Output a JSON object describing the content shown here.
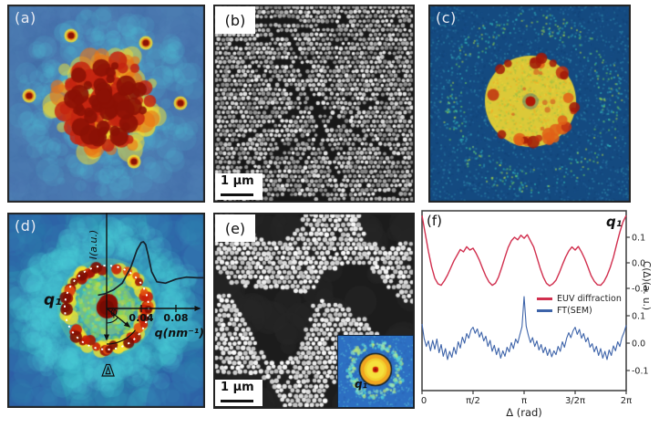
{
  "panels": {
    "a": {
      "label": "(a)"
    },
    "b": {
      "label": "(b)",
      "scale_bar": "1 μm"
    },
    "c": {
      "label": "(c)"
    },
    "d": {
      "label": "(d)",
      "q1_label": "q₁",
      "phi_label": "φ",
      "delta_label": "Δ",
      "y_axis_label": "I(a.u.)",
      "x_axis_label": "q(nm⁻¹)",
      "x_ticks": [
        "0.04",
        "0.08"
      ]
    },
    "e": {
      "label": "(e)",
      "scale_bar": "1 μm",
      "inset_q1_label": "q₁"
    },
    "f": {
      "label": "(f)"
    }
  },
  "chart_data": [
    {
      "type": "line",
      "panel": "f",
      "title": "q₁",
      "xlabel": "Δ (rad)",
      "ylabel": "C(Δ)(a. u.)",
      "xtick_labels": [
        "0",
        "π/2",
        "π",
        "3/2π",
        "2π"
      ],
      "xtick_positions_pi": [
        0,
        0.5,
        1,
        1.5,
        2
      ],
      "xlim_pi": [
        0,
        2
      ],
      "grid": false,
      "legend_position": "middle-right",
      "series": [
        {
          "name": "EUV diffraction",
          "color": "#d12f4e",
          "yticks": [
            0.1,
            0.0,
            -0.1
          ],
          "ytick_labels": [
            "0.1",
            "0.0",
            "-0.1"
          ],
          "x_step_pi": 0.03125,
          "values": [
            0.185,
            0.115,
            0.045,
            -0.015,
            -0.06,
            -0.082,
            -0.088,
            -0.07,
            -0.048,
            -0.02,
            0.008,
            0.03,
            0.052,
            0.043,
            0.063,
            0.05,
            0.057,
            0.036,
            0.01,
            -0.022,
            -0.052,
            -0.075,
            -0.088,
            -0.08,
            -0.055,
            -0.018,
            0.022,
            0.06,
            0.086,
            0.1,
            0.09,
            0.108,
            0.096,
            0.11,
            0.086,
            0.062,
            0.022,
            -0.02,
            -0.055,
            -0.08,
            -0.09,
            -0.082,
            -0.068,
            -0.04,
            -0.008,
            0.022,
            0.046,
            0.062,
            0.05,
            0.064,
            0.042,
            0.016,
            -0.016,
            -0.05,
            -0.072,
            -0.086,
            -0.088,
            -0.074,
            -0.05,
            -0.018,
            0.022,
            0.072,
            0.12,
            0.16,
            0.185
          ]
        },
        {
          "name": "FT(SEM)",
          "color": "#3d63a9",
          "yticks": [
            0.1,
            0.0,
            -0.1
          ],
          "ytick_labels": [
            "0.1",
            "0.0",
            "-0.1"
          ],
          "x_step_pi": 0.0208333,
          "values": [
            0.07,
            0.018,
            -0.012,
            0.008,
            -0.028,
            0.01,
            -0.022,
            0.015,
            -0.035,
            -0.005,
            -0.048,
            -0.02,
            -0.06,
            -0.03,
            -0.052,
            -0.015,
            -0.04,
            0.005,
            -0.018,
            0.022,
            0.0,
            0.035,
            0.018,
            0.048,
            0.058,
            0.036,
            0.052,
            0.022,
            0.04,
            0.008,
            0.025,
            -0.012,
            0.01,
            -0.03,
            -0.008,
            -0.042,
            -0.018,
            -0.055,
            -0.028,
            -0.048,
            -0.015,
            -0.032,
            0.002,
            -0.02,
            0.015,
            0.0,
            0.03,
            0.06,
            0.17,
            0.062,
            0.028,
            0.002,
            0.02,
            -0.012,
            0.008,
            -0.025,
            -0.005,
            -0.035,
            -0.015,
            -0.045,
            -0.022,
            -0.05,
            -0.028,
            -0.042,
            -0.012,
            -0.03,
            0.005,
            -0.015,
            0.018,
            0.038,
            0.02,
            0.045,
            0.058,
            0.032,
            0.05,
            0.018,
            0.035,
            0.005,
            0.02,
            -0.015,
            -0.002,
            -0.032,
            -0.012,
            -0.045,
            -0.02,
            -0.055,
            -0.03,
            -0.06,
            -0.025,
            -0.045,
            -0.01,
            -0.028,
            0.005,
            -0.012,
            0.02,
            0.04,
            0.065
          ]
        }
      ]
    },
    {
      "type": "line",
      "panel": "d-overlay-profile",
      "xlabel": "q(nm⁻¹)",
      "ylabel": "I(a.u.)",
      "xticks": [
        0.04,
        0.08
      ],
      "peak_q_nm_inv": 0.045,
      "q_nm_inv": [
        -0.01,
        -0.002,
        0.008,
        0.018,
        0.028,
        0.035,
        0.04,
        0.0425,
        0.045,
        0.048,
        0.052,
        0.058,
        0.068,
        0.08,
        0.092,
        0.105,
        0.112
      ],
      "intensity_au": [
        0.2,
        0.22,
        0.28,
        0.38,
        0.62,
        0.88,
        0.99,
        1.0,
        0.96,
        0.8,
        0.55,
        0.4,
        0.38,
        0.44,
        0.47,
        0.46,
        0.46
      ]
    }
  ],
  "palette": {
    "a_bg": "#4a7bb0",
    "a_mottle_dark": "#3b66a0",
    "a_mottle_light": "#5590c4",
    "cyan": "#52cede",
    "heat_yellow": "#f4da2e",
    "heat_orange": "#ea7214",
    "heat_red": "#c42410",
    "heat_darkred": "#8c1206",
    "c_bg": "#144a80",
    "c_disc": "#dcc938",
    "d_bg": "#2e63a6",
    "d_teal": "#2899b4",
    "sem_bg": "#181818",
    "sem_dot": "#d9d9d9",
    "axis_color": "#3a3a3a",
    "panel_border": "#222222",
    "d_curve": "#16222c",
    "white_dots": "#ffffff"
  }
}
